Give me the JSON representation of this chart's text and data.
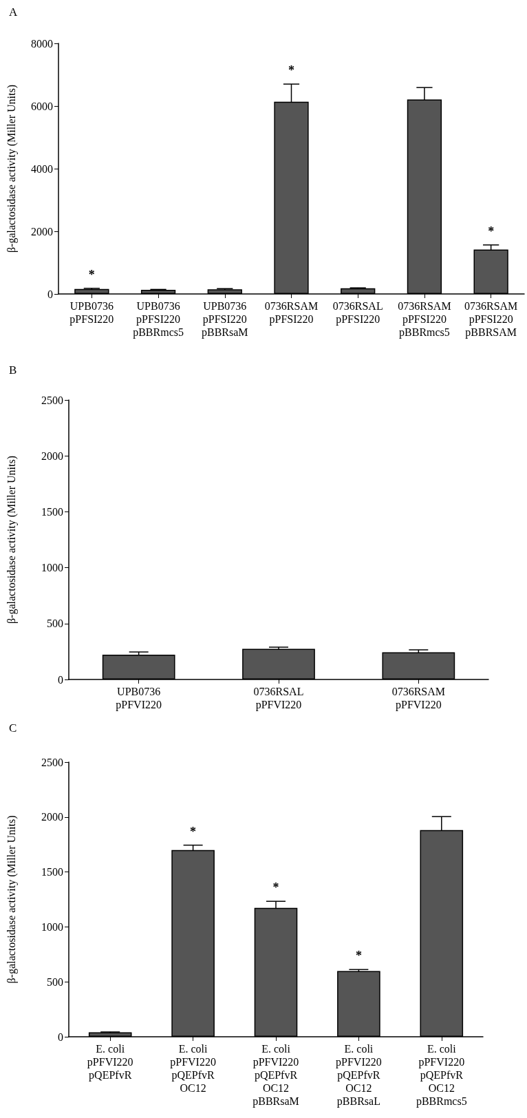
{
  "chart_data": [
    {
      "type": "bar",
      "title": "A",
      "ylabel": "β-galactosidase activity (Miller Units)",
      "categories": [
        "UPB0736\npPFSI220",
        "UPB0736\npPFSI220\npBBRmcs5",
        "UPB0736\npPFSI220\npBBRsaM",
        "0736RSAM\npPFSI220",
        "0736RSAL\npPFSI220",
        "0736RSAM\npPFSI220\npBBRmcs5",
        "0736RSAM\npPFSI220\npBBRSAM"
      ],
      "values": [
        160,
        130,
        150,
        6140,
        180,
        6210,
        1420
      ],
      "errors": [
        20,
        15,
        20,
        560,
        15,
        380,
        145
      ],
      "color": "#555555",
      "ylim": [
        0,
        8000
      ],
      "yticks": [
        0,
        2000,
        4000,
        6000,
        8000
      ],
      "grid": false,
      "annotations": [
        {
          "text": "*",
          "x": "UPB0736\npPFSI220",
          "y": 160
        },
        {
          "text": "*",
          "x": "0736RSAM\npPFSI220",
          "y": 6140
        },
        {
          "text": "*",
          "x": "0736RSAM\npPFSI220\npBBRSAM",
          "y": 1420
        }
      ]
    },
    {
      "type": "bar",
      "title": "B",
      "ylabel": "β-galactosidase activity (Miller Units)",
      "categories": [
        "UPB0736\npPFVI220",
        "0736RSAL\npPFVI220",
        "0736RSAM\npPFVI220"
      ],
      "values": [
        222,
        274,
        243
      ],
      "errors": [
        24,
        15,
        22
      ],
      "color": "#555555",
      "ylim": [
        0,
        2500
      ],
      "yticks": [
        0,
        500,
        1000,
        1500,
        2000,
        2500
      ],
      "grid": false
    },
    {
      "type": "bar",
      "title": "C",
      "ylabel": "β-galactosidase activity (Miller Units)",
      "categories": [
        "E. coli\npPFVI220\npQEPfvR",
        "E. coli\npPFVI220\npQEPfvR\nOC12",
        "E. coli\npPFVI220\npQEPfvR\nOC12\npBBRsaM",
        "E. coli\npPFVI220\npQEPfvR\nOC12\npBBRsaL",
        "E. coli\npPFVI220\npQEPfvR\nOC12\npBBRmcs5"
      ],
      "values": [
        41,
        1700,
        1173,
        599,
        1882
      ],
      "errors": [
        3,
        44,
        60,
        13,
        122
      ],
      "color": "#555555",
      "ylim": [
        0,
        2500
      ],
      "yticks": [
        0,
        500,
        1000,
        1500,
        2000,
        2500
      ],
      "grid": false,
      "annotations": [
        {
          "text": "*",
          "x": "E. coli\npPFVI220\npQEPfvR\nOC12",
          "y": 1700
        },
        {
          "text": "*",
          "x": "E. coli\npPFVI220\npQEPfvR\nOC12\npBBRsaM",
          "y": 1173
        },
        {
          "text": "*",
          "x": "E. coli\npPFVI220\npQEPfvR\nOC12\npBBRsaL",
          "y": 599
        }
      ]
    }
  ]
}
